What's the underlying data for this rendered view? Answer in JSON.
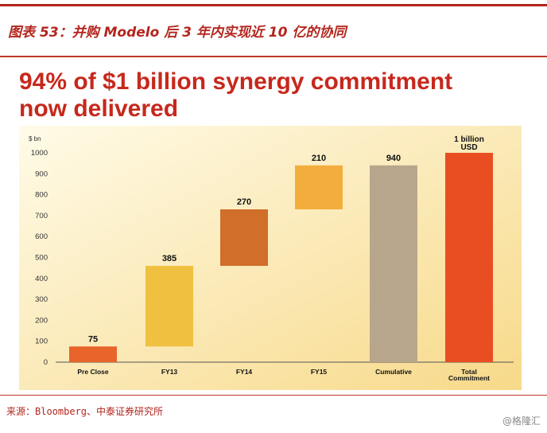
{
  "figure": {
    "title": "图表 53：并购 Modelo 后 3 年内实现近 10 亿的协同",
    "headline_line1": "94% of $1 billion synergy commitment",
    "headline_line2": "now delivered"
  },
  "chart_data": {
    "type": "bar",
    "subtype": "waterfall",
    "unit_label": "$ bn",
    "ylim": [
      0,
      1000
    ],
    "yticks": [
      0,
      100,
      200,
      300,
      400,
      500,
      600,
      700,
      800,
      900,
      1000
    ],
    "grid": false,
    "categories": [
      "Pre Close",
      "FY13",
      "FY14",
      "FY15",
      "Cumulative",
      "Total Commitment"
    ],
    "bars": [
      {
        "category": "Pre Close",
        "bottom": 0,
        "top": 75,
        "label": "75",
        "color": "#e8642a"
      },
      {
        "category": "FY13",
        "bottom": 75,
        "top": 460,
        "label": "385",
        "color": "#f0c040"
      },
      {
        "category": "FY14",
        "bottom": 460,
        "top": 730,
        "label": "270",
        "color": "#d06e2a"
      },
      {
        "category": "FY15",
        "bottom": 730,
        "top": 940,
        "label": "210",
        "color": "#f3ad3c"
      },
      {
        "category": "Cumulative",
        "bottom": 0,
        "top": 940,
        "label": "940",
        "color": "#b8a68c"
      },
      {
        "category": "Total Commitment",
        "bottom": 0,
        "top": 1000,
        "label": "1 billion USD",
        "color": "#e94e22"
      }
    ]
  },
  "footer": {
    "source": "来源：Bloomberg、中泰证券研究所",
    "watermark": "@格隆汇"
  }
}
